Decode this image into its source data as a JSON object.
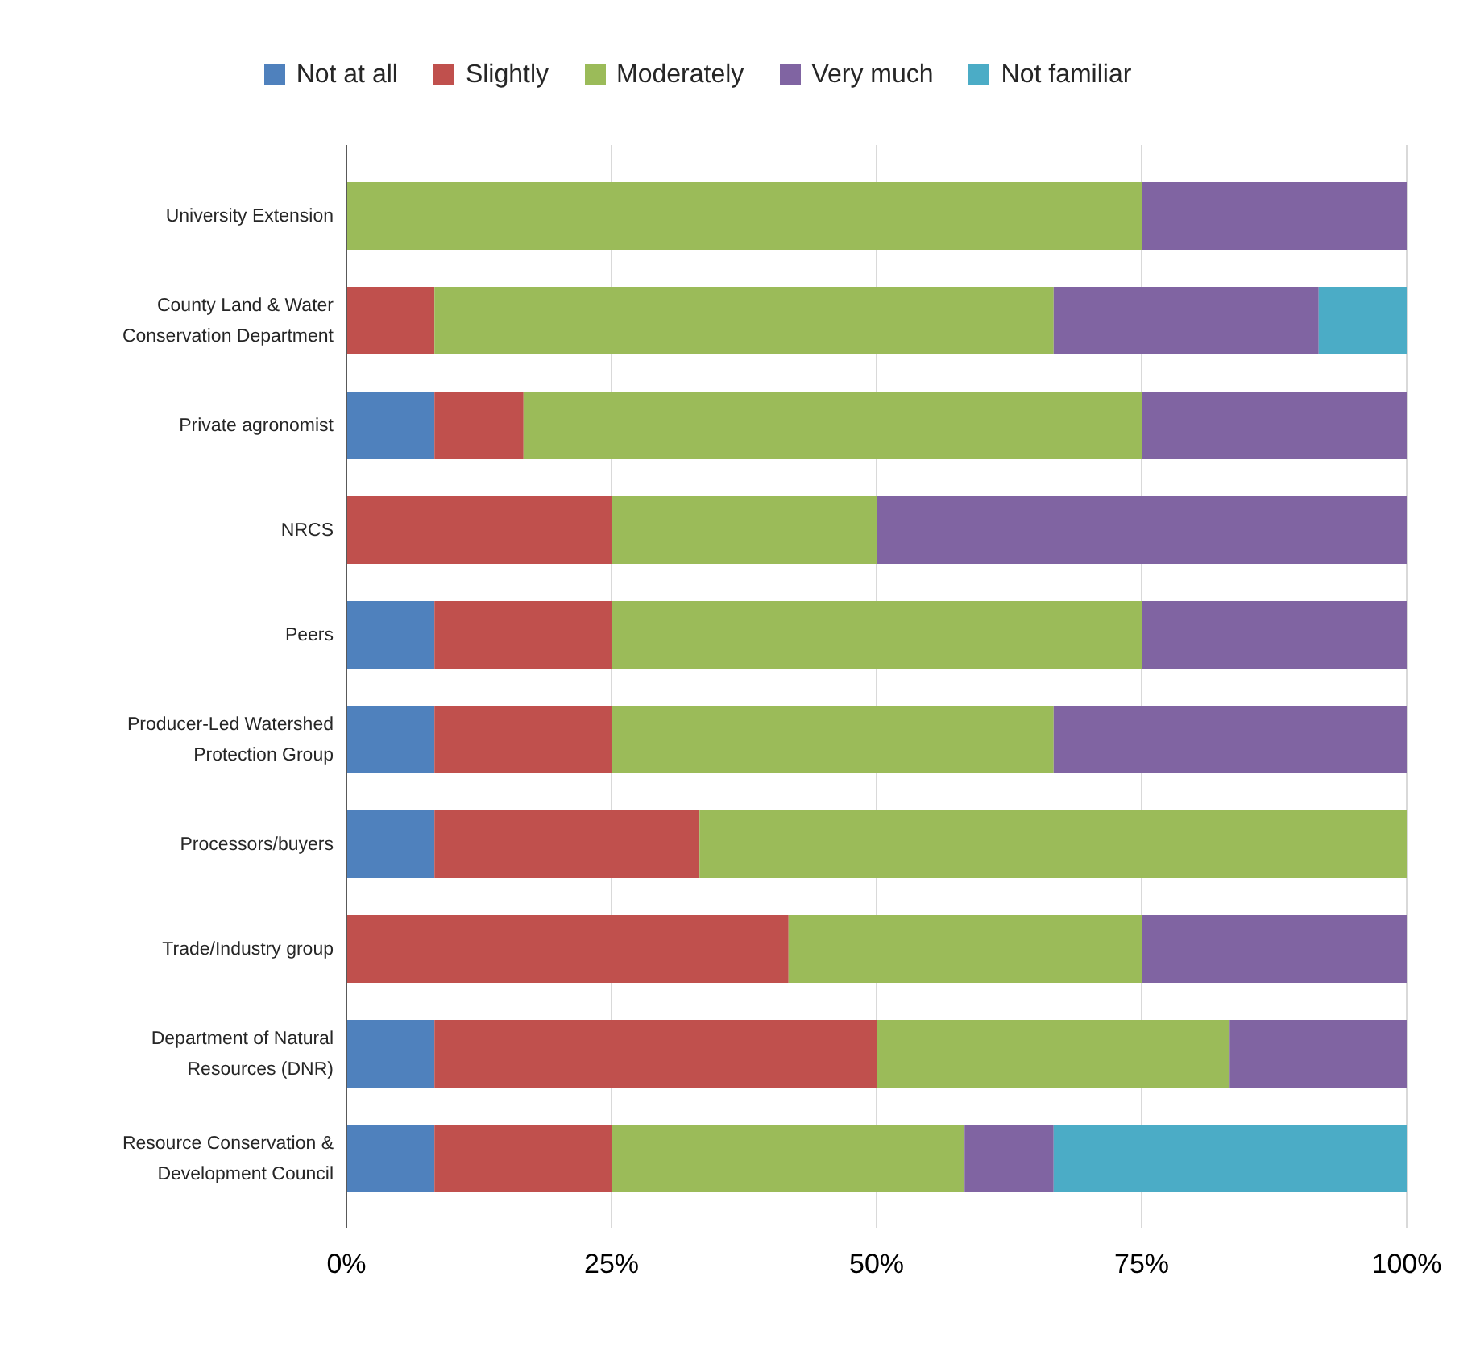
{
  "chart_data": {
    "type": "bar",
    "orientation": "horizontal",
    "stacked": true,
    "categories": [
      "University Extension",
      "County Land & Water Conservation Department",
      "Private agronomist",
      "NRCS",
      "Peers",
      "Producer-Led Watershed Protection Group",
      "Processors/buyers",
      "Trade/Industry group",
      "Department of Natural Resources (DNR)",
      "Resource Conservation & Development Council"
    ],
    "series": [
      {
        "name": "Not at all",
        "color": "#4f81bd",
        "values": [
          0,
          0,
          8.3,
          0,
          8.3,
          8.3,
          8.3,
          0,
          8.3,
          8.3
        ]
      },
      {
        "name": "Slightly",
        "color": "#c0504d",
        "values": [
          0,
          8.3,
          8.4,
          25,
          16.7,
          16.7,
          25,
          41.7,
          41.7,
          16.7
        ]
      },
      {
        "name": "Moderately",
        "color": "#9bbb59",
        "values": [
          75,
          58.4,
          58.3,
          25,
          50,
          41.7,
          66.7,
          33.3,
          33.3,
          33.3
        ]
      },
      {
        "name": "Very much",
        "color": "#8064a2",
        "values": [
          25,
          25,
          25,
          50,
          25,
          33.3,
          0,
          25,
          16.7,
          8.4
        ]
      },
      {
        "name": "Not familiar",
        "color": "#4bacc6",
        "values": [
          0,
          8.3,
          0,
          0,
          0,
          0,
          0,
          0,
          0,
          33.3
        ]
      }
    ],
    "xlim": [
      0,
      100
    ],
    "xticks": [
      {
        "value": 0,
        "label": "0%"
      },
      {
        "value": 25,
        "label": "25%"
      },
      {
        "value": 50,
        "label": "50%"
      },
      {
        "value": 75,
        "label": "75%"
      },
      {
        "value": 100,
        "label": "100%"
      }
    ],
    "grid": "x",
    "legend": "top"
  }
}
